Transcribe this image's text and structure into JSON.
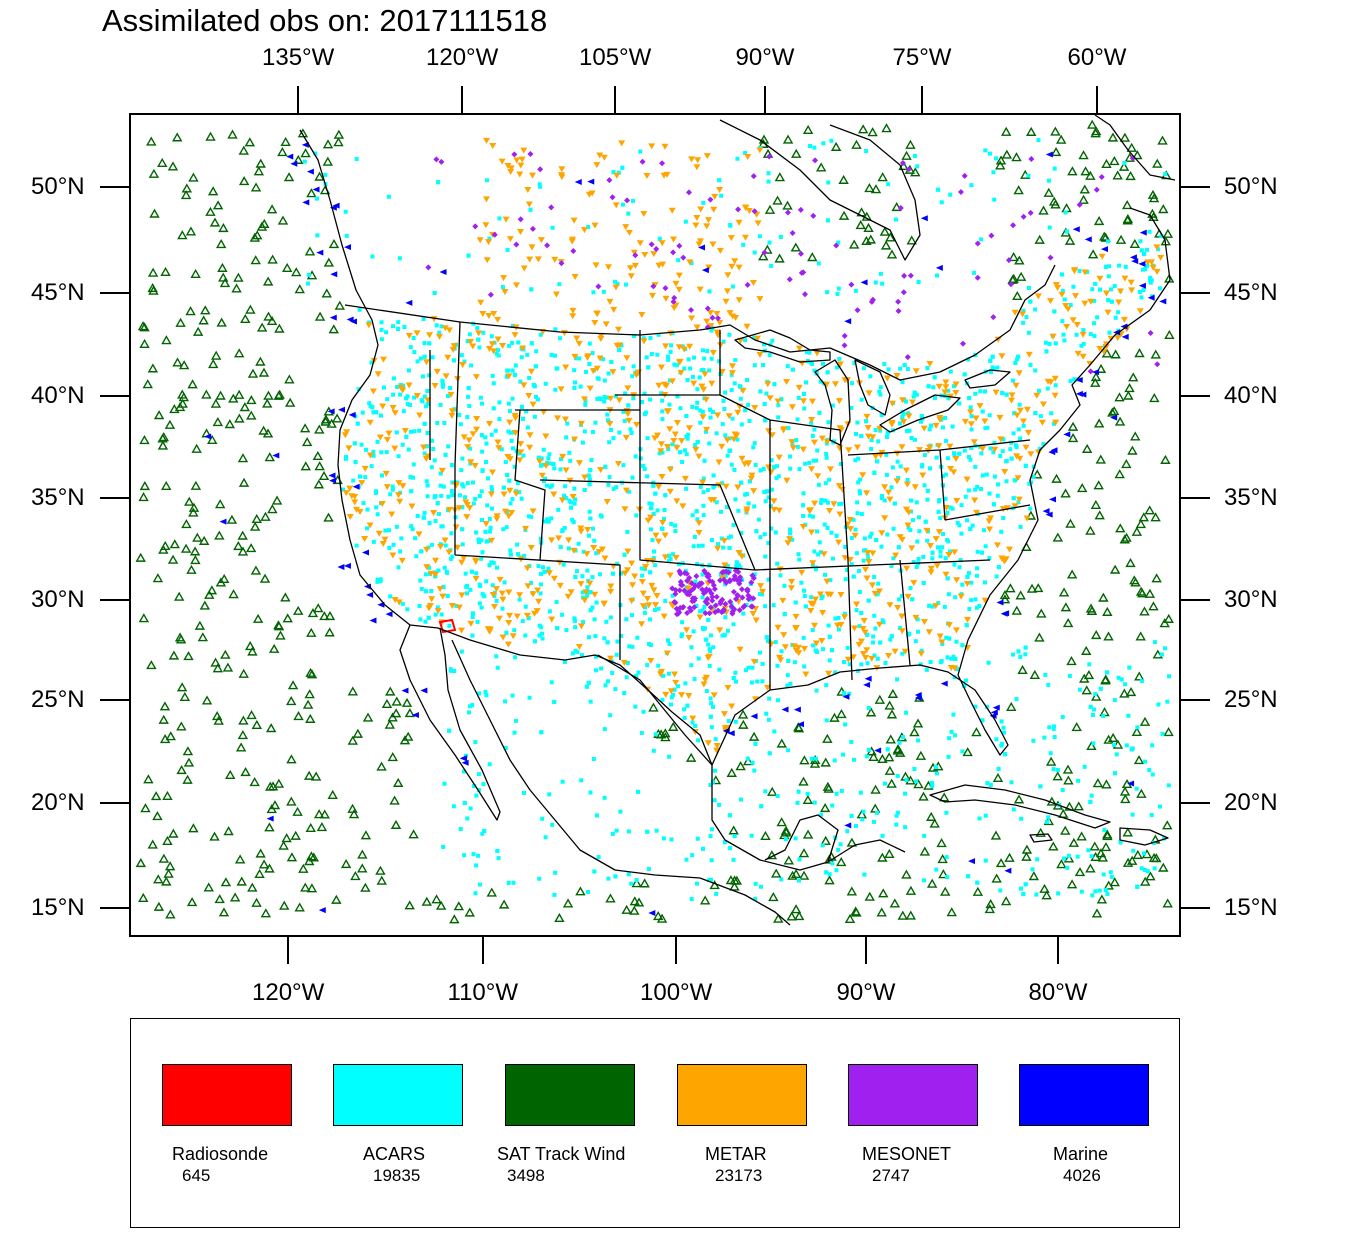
{
  "title": "Assimilated obs on: 2017111518",
  "map": {
    "type": "observation-station-map",
    "region": "North America (CONUS, Mexico, Gulf, Caribbean)",
    "top_lon_ticks": [
      "135°W",
      "120°W",
      "105°W",
      "90°W",
      "75°W",
      "60°W"
    ],
    "bottom_lon_ticks": [
      "120°W",
      "110°W",
      "100°W",
      "90°W",
      "80°W"
    ],
    "lat_ticks": [
      "50°N",
      "45°N",
      "40°N",
      "35°N",
      "30°N",
      "25°N",
      "20°N",
      "15°N"
    ]
  },
  "legend": [
    {
      "label": "Radiosonde",
      "count": "645",
      "color": "#ff0000"
    },
    {
      "label": "ACARS",
      "count": "19835",
      "color": "#00ffff"
    },
    {
      "label": "SAT Track Wind",
      "count": "3498",
      "color": "#006400"
    },
    {
      "label": "METAR",
      "count": "23173",
      "color": "#ffa500"
    },
    {
      "label": "MESONET",
      "count": "2747",
      "color": "#a020f0"
    },
    {
      "label": "Marine",
      "count": "4026",
      "color": "#0000ff"
    }
  ]
}
